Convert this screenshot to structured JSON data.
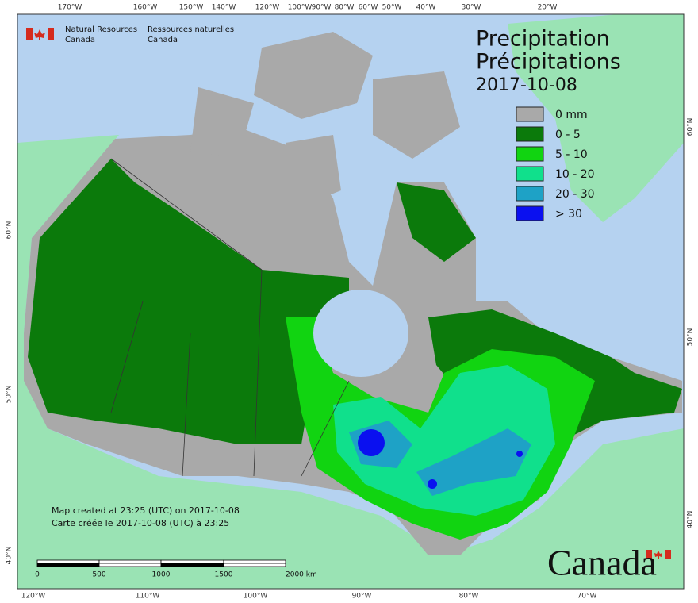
{
  "header": {
    "org_en": "Natural Resources",
    "org_en_2": "Canada",
    "org_fr": "Ressources naturelles",
    "org_fr_2": "Canada"
  },
  "title": {
    "en": "Precipitation",
    "fr": "Précipitations",
    "date": "2017-10-08"
  },
  "legend": [
    {
      "label": "0 mm",
      "color": "#a9a9a9"
    },
    {
      "label": "0 - 5",
      "color": "#0b7a0b"
    },
    {
      "label": "5 - 10",
      "color": "#11d411"
    },
    {
      "label": "10 - 20",
      "color": "#10e08c"
    },
    {
      "label": "20 - 30",
      "color": "#1ea2c6"
    },
    {
      "label": "> 30",
      "color": "#0a10f0"
    }
  ],
  "graticule": {
    "top": [
      "170°W",
      "160°W",
      "150°W",
      "140°W",
      "120°W",
      "100°W",
      "90°W",
      "80°W",
      "60°W",
      "50°W",
      "40°W",
      "30°W",
      "20°W"
    ],
    "bottom": [
      "120°W",
      "110°W",
      "100°W",
      "90°W",
      "80°W",
      "70°W"
    ],
    "left": [
      "60°N",
      "50°N",
      "40°N"
    ],
    "right": [
      "60°N",
      "50°N",
      "40°N"
    ]
  },
  "credits": [
    "Map created at 23:25 (UTC) on 2017-10-08",
    "Carte créée le 2017-10-08 (UTC) à 23:25"
  ],
  "scale_bar": [
    "0",
    "500",
    "1000",
    "1500",
    "2000  km"
  ],
  "wordmark": "Canada"
}
